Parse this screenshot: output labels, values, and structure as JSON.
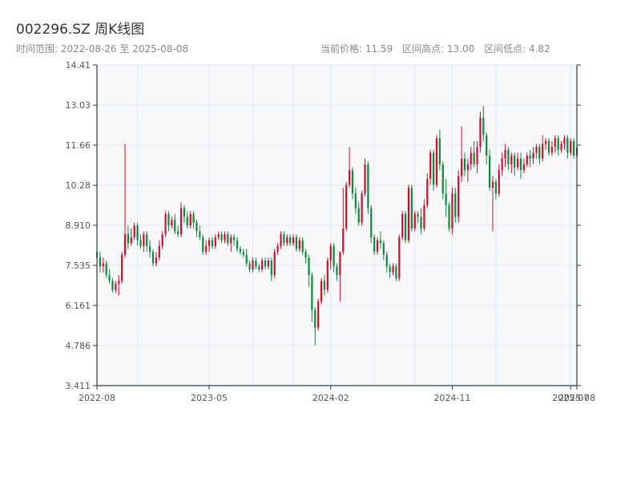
{
  "header": {
    "title": "002296.SZ 周K线图",
    "range_text": "时间范围: 2022-08-26 至 2025-08-08",
    "current_price": "当前价格: 11.59",
    "range_high": "区间高点: 13.00",
    "range_low": "区间低点: 4.82"
  },
  "colors": {
    "up": "#c8102e",
    "down": "#0b8a3c",
    "plot_bg": "#f7f8fa",
    "grid": "#e3e6ea",
    "axis": "#2b3a4a"
  },
  "chart_data": {
    "type": "candlestick",
    "title": "002296.SZ 周K线图",
    "ylim": [
      3.411,
      14.41
    ],
    "y_ticks": [
      "3.411",
      "4.786",
      "6.161",
      "7.535",
      "8.910",
      "10.28",
      "11.66",
      "13.03",
      "14.41"
    ],
    "x_ticks": [
      "2022-08",
      "2023-05",
      "2024-02",
      "2024-11",
      "2025-07",
      "2025-08"
    ],
    "x_range": [
      "2022-08-26",
      "2025-08-08"
    ],
    "grid": true,
    "candles": [
      [
        "2022-08-26",
        8.0,
        7.8,
        8.4,
        7.4
      ],
      [
        "2022-09-02",
        7.8,
        7.5,
        8.0,
        7.3
      ],
      [
        "2022-09-09",
        7.5,
        7.6,
        7.8,
        7.3
      ],
      [
        "2022-09-16",
        7.6,
        7.2,
        7.7,
        7.1
      ],
      [
        "2022-09-23",
        7.2,
        7.0,
        7.4,
        6.9
      ],
      [
        "2022-09-30",
        7.0,
        6.7,
        7.1,
        6.6
      ],
      [
        "2022-10-07",
        6.7,
        6.9,
        7.0,
        6.6
      ],
      [
        "2022-10-14",
        6.9,
        7.0,
        7.2,
        6.5
      ],
      [
        "2022-10-21",
        7.0,
        7.9,
        8.0,
        6.9
      ],
      [
        "2022-10-28",
        7.9,
        8.6,
        11.7,
        7.8
      ],
      [
        "2022-11-04",
        8.6,
        8.3,
        8.9,
        8.1
      ],
      [
        "2022-11-11",
        8.3,
        8.5,
        8.8,
        8.2
      ],
      [
        "2022-11-18",
        8.5,
        8.9,
        9.0,
        8.4
      ],
      [
        "2022-11-25",
        8.9,
        8.4,
        9.0,
        8.2
      ],
      [
        "2022-12-02",
        8.4,
        8.2,
        8.6,
        8.1
      ],
      [
        "2022-12-09",
        8.2,
        8.6,
        8.7,
        8.0
      ],
      [
        "2022-12-16",
        8.6,
        8.2,
        8.7,
        8.0
      ],
      [
        "2022-12-23",
        8.2,
        8.0,
        8.4,
        7.8
      ],
      [
        "2022-12-30",
        8.0,
        7.6,
        8.1,
        7.5
      ],
      [
        "2023-01-06",
        7.6,
        7.8,
        8.0,
        7.5
      ],
      [
        "2023-01-13",
        7.8,
        8.2,
        8.4,
        7.7
      ],
      [
        "2023-01-20",
        8.2,
        8.6,
        8.7,
        8.1
      ],
      [
        "2023-01-27",
        8.6,
        9.3,
        9.4,
        8.5
      ],
      [
        "2023-02-03",
        9.3,
        8.9,
        9.4,
        8.7
      ],
      [
        "2023-02-10",
        8.9,
        9.1,
        9.2,
        8.8
      ],
      [
        "2023-02-17",
        9.1,
        8.7,
        9.3,
        8.6
      ],
      [
        "2023-02-24",
        8.7,
        8.6,
        8.9,
        8.5
      ],
      [
        "2023-03-03",
        8.6,
        9.5,
        9.7,
        8.5
      ],
      [
        "2023-03-10",
        9.5,
        9.2,
        9.6,
        9.0
      ],
      [
        "2023-03-17",
        9.2,
        8.9,
        9.4,
        8.8
      ],
      [
        "2023-03-24",
        8.9,
        9.3,
        9.4,
        8.8
      ],
      [
        "2023-03-31",
        9.3,
        9.0,
        9.4,
        8.8
      ],
      [
        "2023-04-07",
        9.0,
        8.7,
        9.1,
        8.5
      ],
      [
        "2023-04-14",
        8.7,
        8.5,
        8.9,
        8.4
      ],
      [
        "2023-04-21",
        8.5,
        8.0,
        8.6,
        7.9
      ],
      [
        "2023-04-28",
        8.0,
        8.2,
        8.4,
        7.9
      ],
      [
        "2023-05-05",
        8.2,
        8.4,
        8.5,
        8.0
      ],
      [
        "2023-05-12",
        8.4,
        8.2,
        8.5,
        8.1
      ],
      [
        "2023-05-19",
        8.2,
        8.5,
        8.6,
        8.1
      ],
      [
        "2023-05-26",
        8.5,
        8.6,
        8.7,
        8.4
      ],
      [
        "2023-06-02",
        8.6,
        8.4,
        8.7,
        8.3
      ],
      [
        "2023-06-09",
        8.4,
        8.6,
        8.7,
        8.3
      ],
      [
        "2023-06-16",
        8.6,
        8.3,
        8.7,
        8.2
      ],
      [
        "2023-06-23",
        8.3,
        8.5,
        8.6,
        8.0
      ],
      [
        "2023-06-30",
        8.5,
        8.4,
        8.6,
        8.2
      ],
      [
        "2023-07-07",
        8.4,
        8.1,
        8.5,
        8.0
      ],
      [
        "2023-07-14",
        8.1,
        8.0,
        8.2,
        7.9
      ],
      [
        "2023-07-21",
        8.0,
        7.9,
        8.1,
        7.8
      ],
      [
        "2023-07-28",
        7.9,
        7.6,
        8.1,
        7.5
      ],
      [
        "2023-08-04",
        7.6,
        7.4,
        7.7,
        7.3
      ],
      [
        "2023-08-11",
        7.4,
        7.7,
        7.8,
        7.3
      ],
      [
        "2023-08-18",
        7.7,
        7.5,
        7.8,
        7.4
      ],
      [
        "2023-08-25",
        7.5,
        7.4,
        7.6,
        7.3
      ],
      [
        "2023-09-01",
        7.4,
        7.7,
        7.8,
        7.3
      ],
      [
        "2023-09-08",
        7.7,
        7.5,
        7.8,
        7.4
      ],
      [
        "2023-09-15",
        7.5,
        7.7,
        7.8,
        7.4
      ],
      [
        "2023-09-22",
        7.7,
        7.2,
        7.8,
        7.0
      ],
      [
        "2023-09-29",
        7.2,
        8.0,
        8.1,
        7.1
      ],
      [
        "2023-10-06",
        8.0,
        8.2,
        8.3,
        7.9
      ],
      [
        "2023-10-13",
        8.2,
        8.6,
        8.7,
        8.1
      ],
      [
        "2023-10-20",
        8.6,
        8.3,
        8.7,
        8.2
      ],
      [
        "2023-10-27",
        8.3,
        8.5,
        8.6,
        8.2
      ],
      [
        "2023-11-03",
        8.5,
        8.3,
        8.6,
        8.2
      ],
      [
        "2023-11-10",
        8.3,
        8.5,
        8.6,
        8.2
      ],
      [
        "2023-11-17",
        8.5,
        8.1,
        8.6,
        8.0
      ],
      [
        "2023-11-24",
        8.1,
        8.4,
        8.5,
        8.0
      ],
      [
        "2023-12-01",
        8.4,
        8.0,
        8.5,
        7.9
      ],
      [
        "2023-12-08",
        8.0,
        7.8,
        8.1,
        7.6
      ],
      [
        "2023-12-15",
        7.8,
        7.2,
        7.9,
        6.8
      ],
      [
        "2023-12-22",
        7.2,
        6.0,
        7.3,
        5.6
      ],
      [
        "2023-12-29",
        6.0,
        5.4,
        6.1,
        4.8
      ],
      [
        "2024-01-05",
        5.4,
        6.3,
        6.4,
        5.3
      ],
      [
        "2024-01-12",
        6.3,
        7.0,
        7.1,
        6.2
      ],
      [
        "2024-01-19",
        7.0,
        6.7,
        7.2,
        6.5
      ],
      [
        "2024-01-26",
        6.7,
        7.7,
        7.8,
        6.6
      ],
      [
        "2024-02-02",
        7.7,
        8.2,
        8.3,
        7.4
      ],
      [
        "2024-02-09",
        8.2,
        7.5,
        8.3,
        7.3
      ],
      [
        "2024-02-16",
        7.5,
        7.2,
        7.6,
        7.0
      ],
      [
        "2024-02-23",
        7.2,
        8.0,
        8.0,
        6.3
      ],
      [
        "2024-03-01",
        8.0,
        8.8,
        10.2,
        7.9
      ],
      [
        "2024-03-08",
        8.8,
        10.3,
        10.4,
        8.7
      ],
      [
        "2024-03-15",
        10.3,
        10.8,
        11.6,
        10.2
      ],
      [
        "2024-03-22",
        10.8,
        10.0,
        10.9,
        9.8
      ],
      [
        "2024-03-29",
        10.0,
        9.5,
        10.2,
        9.3
      ],
      [
        "2024-04-05",
        9.5,
        9.0,
        9.7,
        8.9
      ],
      [
        "2024-04-12",
        9.0,
        10.0,
        10.1,
        8.9
      ],
      [
        "2024-04-19",
        10.0,
        11.0,
        11.2,
        9.9
      ],
      [
        "2024-04-26",
        11.0,
        9.5,
        11.1,
        9.3
      ],
      [
        "2024-05-03",
        9.5,
        8.5,
        9.6,
        8.3
      ],
      [
        "2024-05-10",
        8.5,
        8.0,
        8.6,
        7.9
      ],
      [
        "2024-05-17",
        8.0,
        8.4,
        8.5,
        7.9
      ],
      [
        "2024-05-24",
        8.4,
        8.3,
        8.7,
        8.1
      ],
      [
        "2024-05-31",
        8.3,
        7.9,
        8.4,
        7.7
      ],
      [
        "2024-06-07",
        7.9,
        7.5,
        8.0,
        7.3
      ],
      [
        "2024-06-14",
        7.5,
        7.3,
        7.6,
        7.1
      ],
      [
        "2024-06-21",
        7.3,
        7.5,
        7.6,
        7.2
      ],
      [
        "2024-06-28",
        7.5,
        7.1,
        7.6,
        7.0
      ],
      [
        "2024-07-05",
        7.1,
        8.5,
        8.6,
        7.0
      ],
      [
        "2024-07-12",
        8.5,
        9.3,
        9.4,
        8.4
      ],
      [
        "2024-07-19",
        9.3,
        8.4,
        9.4,
        8.3
      ],
      [
        "2024-07-26",
        8.4,
        10.2,
        10.3,
        8.3
      ],
      [
        "2024-08-02",
        10.2,
        8.8,
        10.3,
        8.7
      ],
      [
        "2024-08-09",
        8.8,
        9.3,
        9.4,
        8.7
      ],
      [
        "2024-08-16",
        9.3,
        9.2,
        9.4,
        9.0
      ],
      [
        "2024-08-23",
        9.2,
        8.8,
        9.5,
        8.6
      ],
      [
        "2024-08-30",
        8.8,
        9.6,
        9.8,
        8.7
      ],
      [
        "2024-09-06",
        9.6,
        10.5,
        10.7,
        9.5
      ],
      [
        "2024-09-13",
        10.5,
        11.4,
        11.5,
        10.3
      ],
      [
        "2024-09-20",
        11.4,
        10.3,
        11.5,
        10.1
      ],
      [
        "2024-09-27",
        10.3,
        11.9,
        12.0,
        10.2
      ],
      [
        "2024-10-04",
        11.9,
        11.0,
        12.2,
        10.8
      ],
      [
        "2024-10-11",
        11.0,
        10.0,
        11.1,
        9.8
      ],
      [
        "2024-10-18",
        10.0,
        9.6,
        10.5,
        9.2
      ],
      [
        "2024-10-25",
        9.6,
        8.8,
        9.7,
        8.7
      ],
      [
        "2024-11-01",
        8.8,
        10.0,
        10.2,
        8.6
      ],
      [
        "2024-11-08",
        10.0,
        9.2,
        10.2,
        9.0
      ],
      [
        "2024-11-15",
        9.2,
        10.6,
        10.8,
        9.0
      ],
      [
        "2024-11-22",
        10.6,
        11.2,
        12.3,
        10.4
      ],
      [
        "2024-11-29",
        11.2,
        10.8,
        11.4,
        10.6
      ],
      [
        "2024-12-06",
        10.8,
        11.0,
        11.2,
        10.4
      ],
      [
        "2024-12-13",
        11.0,
        11.4,
        11.6,
        10.8
      ],
      [
        "2024-12-20",
        11.4,
        11.0,
        11.8,
        10.9
      ],
      [
        "2024-12-27",
        11.0,
        11.6,
        11.8,
        10.7
      ],
      [
        "2025-01-03",
        11.6,
        12.6,
        12.8,
        11.4
      ],
      [
        "2025-01-10",
        12.6,
        12.0,
        13.0,
        11.8
      ],
      [
        "2025-01-17",
        12.0,
        11.3,
        12.1,
        11.0
      ],
      [
        "2025-01-24",
        11.3,
        10.2,
        11.5,
        10.1
      ],
      [
        "2025-01-31",
        10.2,
        10.4,
        10.6,
        8.7
      ],
      [
        "2025-02-07",
        10.4,
        10.0,
        10.5,
        9.8
      ],
      [
        "2025-02-14",
        10.0,
        10.8,
        11.0,
        9.9
      ],
      [
        "2025-02-21",
        10.8,
        11.2,
        11.4,
        10.6
      ],
      [
        "2025-02-28",
        11.2,
        11.5,
        11.7,
        10.9
      ],
      [
        "2025-03-07",
        11.5,
        11.0,
        11.6,
        10.8
      ],
      [
        "2025-03-14",
        11.0,
        11.3,
        11.4,
        10.7
      ],
      [
        "2025-03-21",
        11.3,
        10.9,
        11.4,
        10.6
      ],
      [
        "2025-03-28",
        10.9,
        11.2,
        11.4,
        10.8
      ],
      [
        "2025-04-04",
        11.2,
        10.8,
        11.4,
        10.5
      ],
      [
        "2025-04-11",
        10.8,
        11.0,
        11.2,
        10.7
      ],
      [
        "2025-04-18",
        11.0,
        11.3,
        11.4,
        10.9
      ],
      [
        "2025-04-25",
        11.3,
        11.2,
        11.5,
        10.9
      ],
      [
        "2025-05-02",
        11.2,
        11.4,
        11.6,
        11.0
      ],
      [
        "2025-05-09",
        11.4,
        11.6,
        11.7,
        11.2
      ],
      [
        "2025-05-16",
        11.6,
        11.2,
        11.7,
        11.0
      ],
      [
        "2025-05-23",
        11.2,
        11.7,
        12.0,
        11.1
      ],
      [
        "2025-05-30",
        11.7,
        11.8,
        11.9,
        11.5
      ],
      [
        "2025-06-06",
        11.8,
        11.4,
        11.9,
        11.3
      ],
      [
        "2025-06-13",
        11.4,
        11.6,
        11.8,
        11.3
      ],
      [
        "2025-06-20",
        11.6,
        11.9,
        12.0,
        11.4
      ],
      [
        "2025-06-27",
        11.9,
        11.5,
        12.0,
        11.3
      ],
      [
        "2025-07-04",
        11.5,
        11.7,
        11.8,
        11.4
      ],
      [
        "2025-07-11",
        11.7,
        11.9,
        12.0,
        11.5
      ],
      [
        "2025-07-18",
        11.9,
        11.4,
        12.0,
        11.2
      ],
      [
        "2025-07-25",
        11.4,
        11.8,
        11.9,
        11.3
      ],
      [
        "2025-08-01",
        11.8,
        11.3,
        11.9,
        11.2
      ],
      [
        "2025-08-08",
        11.3,
        11.59,
        11.7,
        11.1
      ]
    ]
  }
}
